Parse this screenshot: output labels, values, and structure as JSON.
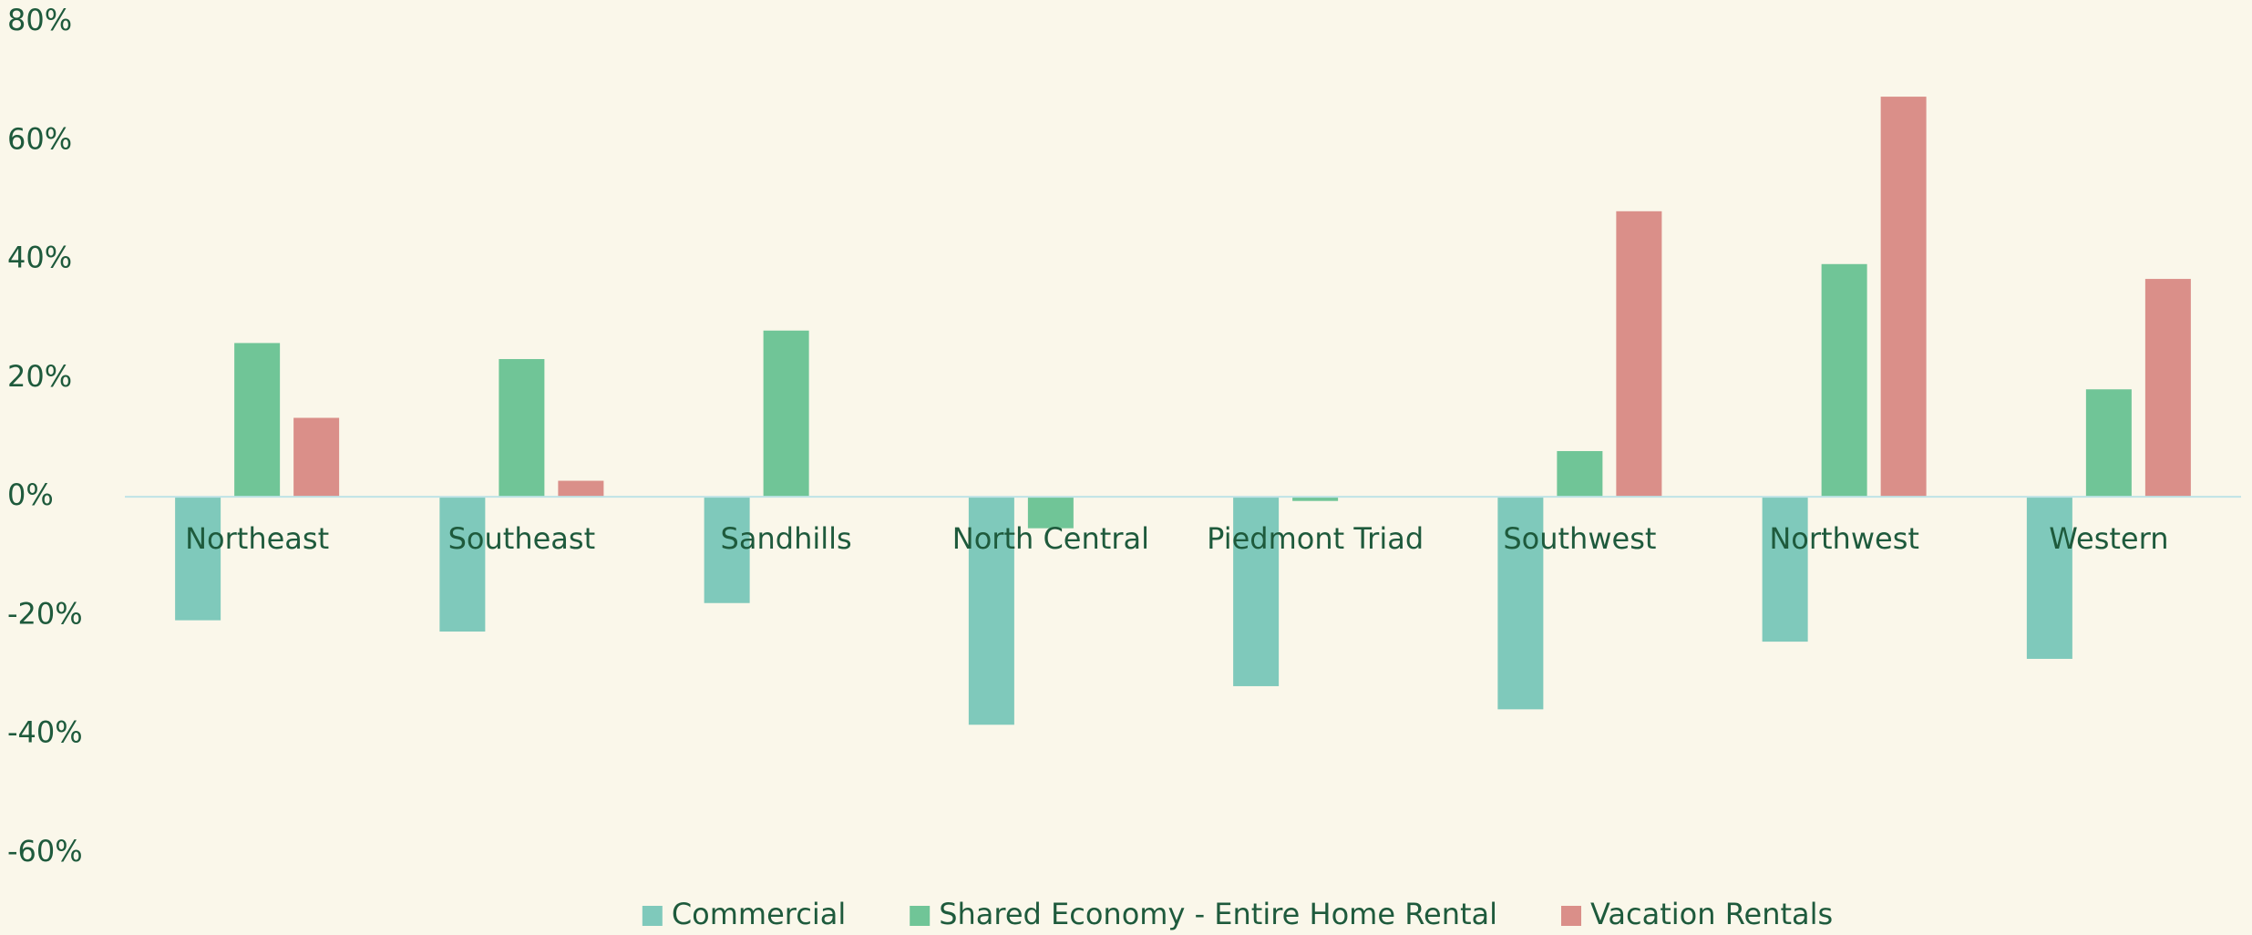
{
  "chart_data": {
    "type": "bar",
    "categories": [
      "Northeast",
      "Southeast",
      "Sandhills",
      "North Central",
      "Piedmont Triad",
      "Southwest",
      "Northwest",
      "Western"
    ],
    "series": [
      {
        "name": "Commercial",
        "color": "#7fc9bb",
        "values": [
          -20.8,
          -22.7,
          -17.9,
          -38.4,
          -31.9,
          -35.8,
          -24.4,
          -27.3
        ]
      },
      {
        "name": "Shared Economy - Entire Home Rental",
        "color": "#70c597",
        "values": [
          25.9,
          23.2,
          28.0,
          -5.3,
          -0.7,
          7.7,
          39.2,
          18.1
        ]
      },
      {
        "name": "Vacation Rentals",
        "color": "#da8f89",
        "values": [
          13.3,
          2.7,
          null,
          null,
          null,
          48.1,
          67.4,
          36.7
        ]
      }
    ],
    "ylim": [
      -60,
      80
    ],
    "yticks": [
      {
        "value": -60,
        "label": "-60%"
      },
      {
        "value": -40,
        "label": "-40%"
      },
      {
        "value": -20,
        "label": "-20%"
      },
      {
        "value": 0,
        "label": "0%"
      },
      {
        "value": 20,
        "label": "20%"
      },
      {
        "value": 40,
        "label": "40%"
      },
      {
        "value": 60,
        "label": "60%"
      },
      {
        "value": 80,
        "label": "80%"
      }
    ],
    "grid": false,
    "legend": "bottom"
  }
}
